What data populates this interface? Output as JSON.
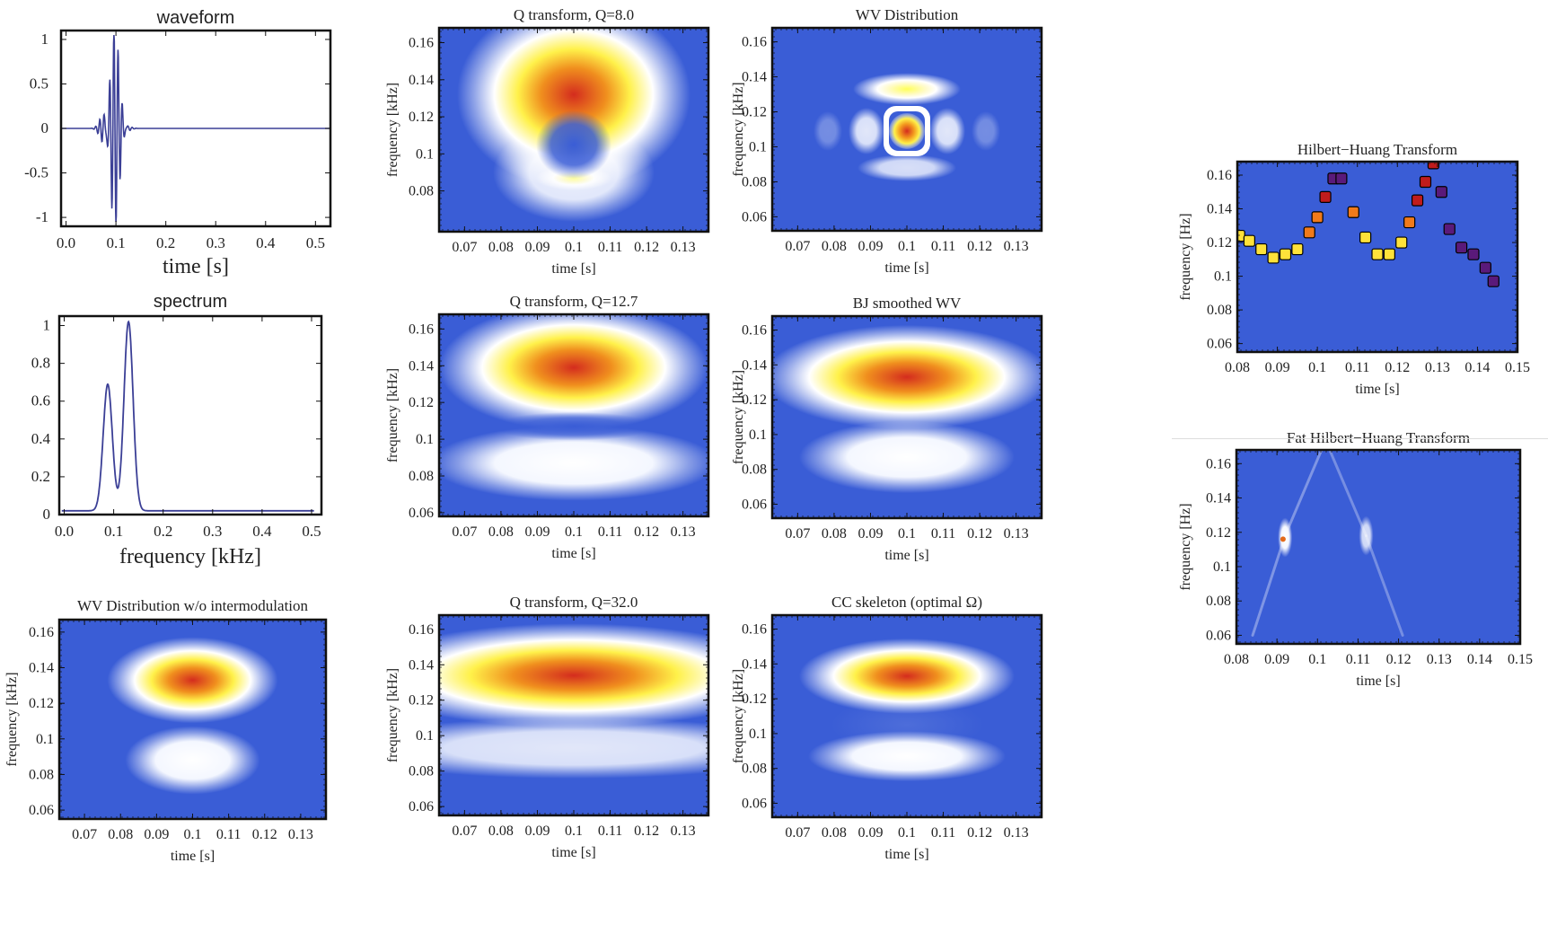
{
  "panels": {
    "waveform": {
      "title": "waveform",
      "xlabel": "time [s]",
      "xticks": [
        "0.0",
        "0.1",
        "0.2",
        "0.3",
        "0.4",
        "0.5"
      ],
      "yticks": [
        "1",
        "0.5",
        "0",
        "-0.5",
        "-1"
      ]
    },
    "spectrum": {
      "title": "spectrum",
      "xlabel": "frequency [kHz]",
      "xticks": [
        "0.0",
        "0.1",
        "0.2",
        "0.3",
        "0.4",
        "0.5"
      ],
      "yticks": [
        "1",
        "0.8",
        "0.6",
        "0.4",
        "0.2",
        "0"
      ]
    },
    "wv_noint": {
      "title": "WV Distribution w/o intermodulation",
      "xlabel": "time [s]",
      "ylabel": "frequency [kHz]",
      "xticks": [
        "0.07",
        "0.08",
        "0.09",
        "0.1",
        "0.11",
        "0.12",
        "0.13"
      ],
      "yticks": [
        "0.16",
        "0.14",
        "0.12",
        "0.1",
        "0.08",
        "0.06"
      ]
    },
    "q8": {
      "title": "Q transform, Q=8.0",
      "xlabel": "time [s]",
      "ylabel": "frequency [kHz]",
      "xticks": [
        "0.07",
        "0.08",
        "0.09",
        "0.1",
        "0.11",
        "0.12",
        "0.13"
      ],
      "yticks": [
        "0.16",
        "0.14",
        "0.12",
        "0.1",
        "0.08"
      ]
    },
    "q12": {
      "title": "Q transform, Q=12.7",
      "xlabel": "time [s]",
      "ylabel": "frequency [kHz]",
      "xticks": [
        "0.07",
        "0.08",
        "0.09",
        "0.1",
        "0.11",
        "0.12",
        "0.13"
      ],
      "yticks": [
        "0.16",
        "0.14",
        "0.12",
        "0.1",
        "0.08",
        "0.06"
      ]
    },
    "q32": {
      "title": "Q transform, Q=32.0",
      "xlabel": "time [s]",
      "ylabel": "frequency [kHz]",
      "xticks": [
        "0.07",
        "0.08",
        "0.09",
        "0.1",
        "0.11",
        "0.12",
        "0.13"
      ],
      "yticks": [
        "0.16",
        "0.14",
        "0.12",
        "0.1",
        "0.08",
        "0.06"
      ]
    },
    "wv": {
      "title": "WV Distribution",
      "xlabel": "time [s]",
      "ylabel": "frequency [kHz]",
      "xticks": [
        "0.07",
        "0.08",
        "0.09",
        "0.1",
        "0.11",
        "0.12",
        "0.13"
      ],
      "yticks": [
        "0.16",
        "0.14",
        "0.12",
        "0.1",
        "0.08",
        "0.06"
      ]
    },
    "bj": {
      "title": "BJ smoothed WV",
      "xlabel": "time [s]",
      "ylabel": "frequency [kHz]",
      "xticks": [
        "0.07",
        "0.08",
        "0.09",
        "0.1",
        "0.11",
        "0.12",
        "0.13"
      ],
      "yticks": [
        "0.16",
        "0.14",
        "0.12",
        "0.1",
        "0.08",
        "0.06"
      ]
    },
    "cc": {
      "title": "CC skeleton (optimal Ω)",
      "xlabel": "time [s]",
      "ylabel": "frequency [kHz]",
      "xticks": [
        "0.07",
        "0.08",
        "0.09",
        "0.1",
        "0.11",
        "0.12",
        "0.13"
      ],
      "yticks": [
        "0.16",
        "0.14",
        "0.12",
        "0.1",
        "0.08",
        "0.06"
      ]
    },
    "hht": {
      "title": "Hilbert−Huang Transform",
      "xlabel": "time [s]",
      "ylabel": "frequency [Hz]",
      "xticks": [
        "0.08",
        "0.09",
        "0.1",
        "0.11",
        "0.12",
        "0.13",
        "0.14",
        "0.15"
      ],
      "yticks": [
        "0.16",
        "0.14",
        "0.12",
        "0.1",
        "0.08",
        "0.06"
      ]
    },
    "fhht": {
      "title": "Fat Hilbert−Huang Transform",
      "xlabel": "time [s]",
      "ylabel": "frequency [Hz]",
      "xticks": [
        "0.08",
        "0.09",
        "0.1",
        "0.11",
        "0.12",
        "0.13",
        "0.14",
        "0.15"
      ],
      "yticks": [
        "0.16",
        "0.14",
        "0.12",
        "0.1",
        "0.08",
        "0.06"
      ]
    }
  },
  "chart_data": [
    {
      "id": "waveform",
      "type": "line",
      "title": "waveform",
      "xlabel": "time [s]",
      "xlim": [
        -0.01,
        0.53
      ],
      "ylim": [
        -1.1,
        1.1
      ],
      "description_values": {
        "burst_center_s": 0.095,
        "peak_amplitude": 1.0,
        "flat_after_s": 0.15
      }
    },
    {
      "id": "spectrum",
      "type": "line",
      "title": "spectrum",
      "xlabel": "frequency [kHz]",
      "xlim": [
        -0.01,
        0.52
      ],
      "ylim": [
        0,
        1.05
      ],
      "series": [
        {
          "peaks": [
            {
              "x": 0.088,
              "y": 0.67
            },
            {
              "x": 0.13,
              "y": 1.0
            }
          ]
        }
      ]
    },
    {
      "id": "wv_noint",
      "type": "heatmap",
      "title": "WV Distribution w/o intermodulation",
      "xlabel": "time [s]",
      "ylabel": "frequency [kHz]",
      "xlim": [
        0.063,
        0.137
      ],
      "ylim": [
        0.055,
        0.167
      ],
      "blobs": [
        {
          "t": 0.1,
          "f": 0.133,
          "level": 1.0
        },
        {
          "t": 0.1,
          "f": 0.088,
          "level": 0.48
        }
      ]
    },
    {
      "id": "q8",
      "type": "heatmap",
      "title": "Q transform, Q=8.0",
      "xlabel": "time [s]",
      "ylabel": "frequency [kHz]",
      "xlim": [
        0.063,
        0.137
      ],
      "ylim": [
        0.058,
        0.168
      ],
      "blobs": [
        {
          "t": 0.1,
          "f": 0.133,
          "level": 1.0,
          "shape": "arc"
        },
        {
          "t": 0.1,
          "f": 0.09,
          "level": 0.55
        }
      ]
    },
    {
      "id": "q12",
      "type": "heatmap",
      "title": "Q transform, Q=12.7",
      "xlabel": "time [s]",
      "ylabel": "frequency [kHz]",
      "xlim": [
        0.063,
        0.137
      ],
      "ylim": [
        0.058,
        0.168
      ],
      "blobs": [
        {
          "t": 0.1,
          "f": 0.139,
          "level": 1.0
        },
        {
          "t": 0.1,
          "f": 0.094,
          "level": 0.45
        }
      ]
    },
    {
      "id": "q32",
      "type": "heatmap",
      "title": "Q transform, Q=32.0",
      "xlabel": "time [s]",
      "ylabel": "frequency [kHz]",
      "xlim": [
        0.063,
        0.137
      ],
      "ylim": [
        0.055,
        0.168
      ],
      "blobs": [
        {
          "t": 0.1,
          "f": 0.134,
          "level": 1.0
        },
        {
          "t": 0.1,
          "f": 0.093,
          "level": 0.4
        }
      ]
    },
    {
      "id": "wv",
      "type": "heatmap",
      "title": "WV Distribution",
      "xlabel": "time [s]",
      "ylabel": "frequency [kHz]",
      "xlim": [
        0.063,
        0.137
      ],
      "ylim": [
        0.052,
        0.168
      ],
      "blobs": [
        {
          "t": 0.1,
          "f": 0.109,
          "level": 1.0
        },
        {
          "t": 0.1,
          "f": 0.133,
          "level": 0.65
        },
        {
          "t": 0.1,
          "f": 0.088,
          "level": 0.5
        }
      ]
    },
    {
      "id": "bj",
      "type": "heatmap",
      "title": "BJ smoothed WV",
      "xlabel": "time [s]",
      "ylabel": "frequency [kHz]",
      "xlim": [
        0.063,
        0.137
      ],
      "ylim": [
        0.052,
        0.168
      ],
      "blobs": [
        {
          "t": 0.1,
          "f": 0.133,
          "level": 1.0
        },
        {
          "t": 0.1,
          "f": 0.087,
          "level": 0.45
        }
      ]
    },
    {
      "id": "cc",
      "type": "heatmap",
      "title": "CC skeleton (optimal Ω)",
      "xlabel": "time [s]",
      "ylabel": "frequency [kHz]",
      "xlim": [
        0.063,
        0.137
      ],
      "ylim": [
        0.052,
        0.168
      ],
      "blobs": [
        {
          "t": 0.1,
          "f": 0.133,
          "level": 1.0
        },
        {
          "t": 0.1,
          "f": 0.087,
          "level": 0.45
        }
      ]
    },
    {
      "id": "hht",
      "type": "scatter",
      "title": "Hilbert−Huang Transform",
      "xlabel": "time [s]",
      "ylabel": "frequency [Hz]",
      "xlim": [
        0.08,
        0.15
      ],
      "ylim": [
        0.055,
        0.168
      ],
      "series": [
        {
          "points": [
            [
              0.0805,
              0.124
            ],
            [
              0.083,
              0.121
            ],
            [
              0.086,
              0.116
            ],
            [
              0.089,
              0.111
            ],
            [
              0.092,
              0.113
            ],
            [
              0.095,
              0.116
            ],
            [
              0.098,
              0.126
            ],
            [
              0.1,
              0.135
            ],
            [
              0.102,
              0.147
            ],
            [
              0.104,
              0.158
            ],
            [
              0.106,
              0.158
            ],
            [
              0.109,
              0.138
            ],
            [
              0.112,
              0.123
            ],
            [
              0.115,
              0.113
            ],
            [
              0.118,
              0.113
            ],
            [
              0.121,
              0.12
            ],
            [
              0.123,
              0.132
            ],
            [
              0.125,
              0.145
            ],
            [
              0.127,
              0.156
            ],
            [
              0.129,
              0.167
            ],
            [
              0.131,
              0.15
            ],
            [
              0.133,
              0.128
            ],
            [
              0.136,
              0.117
            ],
            [
              0.139,
              0.113
            ],
            [
              0.142,
              0.105
            ],
            [
              0.144,
              0.097
            ]
          ]
        }
      ]
    },
    {
      "id": "fhht",
      "type": "heatmap",
      "title": "Fat Hilbert−Huang Transform",
      "xlabel": "time [s]",
      "ylabel": "frequency [Hz]",
      "xlim": [
        0.08,
        0.15
      ],
      "ylim": [
        0.055,
        0.168
      ],
      "blobs": [
        {
          "t": 0.092,
          "f": 0.116,
          "level": 0.6
        },
        {
          "t": 0.112,
          "f": 0.118,
          "level": 0.3
        }
      ]
    }
  ]
}
